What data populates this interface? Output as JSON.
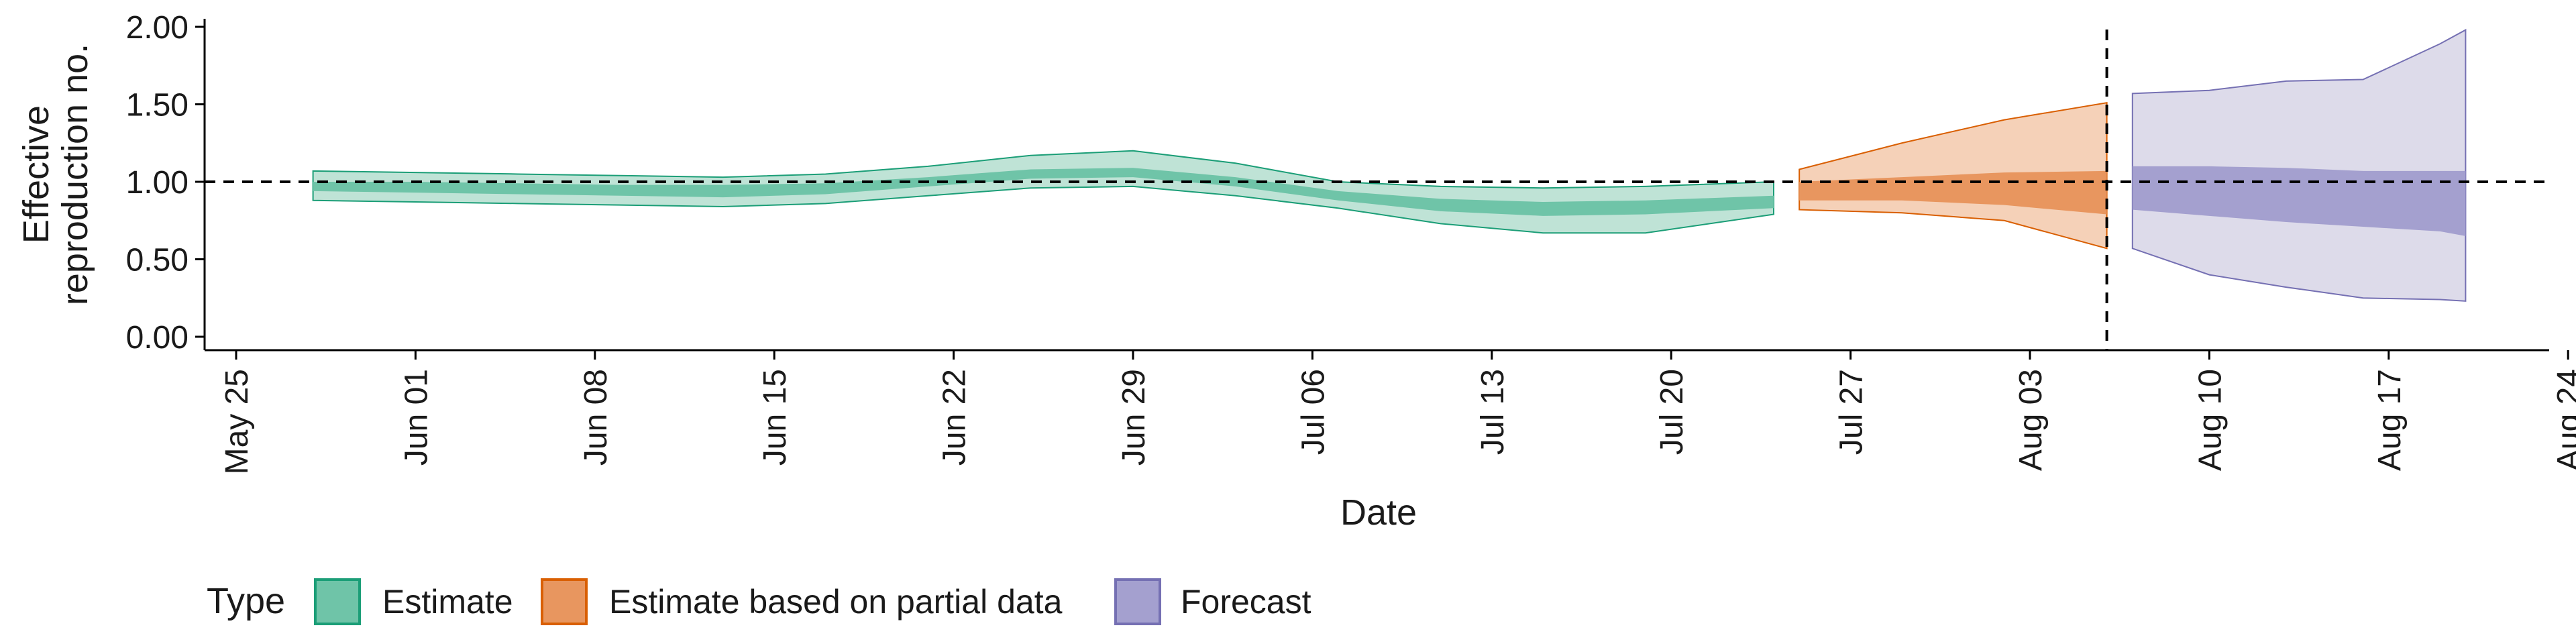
{
  "chart_data": {
    "type": "area",
    "xlabel": "Date",
    "ylabel": "Effective reproduction no.",
    "ylim": [
      0,
      2
    ],
    "y_ticks": [
      "0.00",
      "0.50",
      "1.00",
      "1.50",
      "2.00"
    ],
    "x_ticks": [
      "May 25",
      "Jun 01",
      "Jun 08",
      "Jun 15",
      "Jun 22",
      "Jun 29",
      "Jul 06",
      "Jul 13",
      "Jul 20",
      "Jul 27",
      "Aug 03",
      "Aug 10",
      "Aug 17",
      "Aug 24"
    ],
    "reference_line_y": 1.0,
    "reference_line_date": "2020-08-06",
    "grid": false,
    "legend": {
      "title": "Type",
      "position": "bottom-left",
      "items": [
        {
          "label": "Estimate",
          "fill": "#6fc4a8",
          "stroke": "#1b9e77"
        },
        {
          "label": "Estimate based on partial data",
          "fill": "#e8965f",
          "stroke": "#d95f02"
        },
        {
          "label": "Forecast",
          "fill": "#a4a0cf",
          "stroke": "#7570b3"
        }
      ]
    },
    "series": [
      {
        "name": "Estimate",
        "outer_fill": "#bfe3d6",
        "inner_fill": "#6fc4a8",
        "stroke": "#1b9e77",
        "dates": [
          "2020-05-28",
          "2020-06-01",
          "2020-06-05",
          "2020-06-09",
          "2020-06-13",
          "2020-06-17",
          "2020-06-21",
          "2020-06-25",
          "2020-06-29",
          "2020-07-03",
          "2020-07-07",
          "2020-07-11",
          "2020-07-15",
          "2020-07-19",
          "2020-07-24"
        ],
        "upper90": [
          1.07,
          1.06,
          1.05,
          1.04,
          1.03,
          1.05,
          1.1,
          1.17,
          1.2,
          1.12,
          1.0,
          0.97,
          0.96,
          0.97,
          1.0
        ],
        "lower90": [
          0.88,
          0.87,
          0.86,
          0.85,
          0.84,
          0.86,
          0.91,
          0.96,
          0.97,
          0.91,
          0.83,
          0.73,
          0.67,
          0.67,
          0.79
        ],
        "upper50": [
          1.0,
          1.0,
          0.99,
          0.98,
          0.98,
          0.99,
          1.03,
          1.08,
          1.09,
          1.03,
          0.94,
          0.89,
          0.87,
          0.88,
          0.91
        ],
        "lower50": [
          0.94,
          0.93,
          0.92,
          0.91,
          0.9,
          0.92,
          0.97,
          1.02,
          1.03,
          0.97,
          0.88,
          0.81,
          0.78,
          0.79,
          0.83
        ]
      },
      {
        "name": "Estimate based on partial data",
        "outer_fill": "#f5d1b8",
        "inner_fill": "#e8965f",
        "stroke": "#d95f02",
        "dates": [
          "2020-07-25",
          "2020-07-29",
          "2020-08-02",
          "2020-08-06"
        ],
        "upper90": [
          1.08,
          1.25,
          1.4,
          1.51
        ],
        "lower90": [
          0.82,
          0.8,
          0.75,
          0.57
        ],
        "upper50": [
          1.0,
          1.03,
          1.06,
          1.07
        ],
        "lower50": [
          0.88,
          0.88,
          0.85,
          0.79
        ]
      },
      {
        "name": "Forecast",
        "outer_fill": "#dddbea",
        "inner_fill": "#a4a0cf",
        "stroke": "#7570b3",
        "dates": [
          "2020-08-07",
          "2020-08-10",
          "2020-08-13",
          "2020-08-16",
          "2020-08-19",
          "2020-08-20"
        ],
        "upper90": [
          1.57,
          1.59,
          1.65,
          1.66,
          1.89,
          1.98
        ],
        "lower90": [
          0.57,
          0.4,
          0.32,
          0.25,
          0.24,
          0.23
        ],
        "upper50": [
          1.1,
          1.1,
          1.09,
          1.07,
          1.07,
          1.07
        ],
        "lower50": [
          0.82,
          0.78,
          0.74,
          0.71,
          0.68,
          0.65
        ]
      }
    ]
  }
}
